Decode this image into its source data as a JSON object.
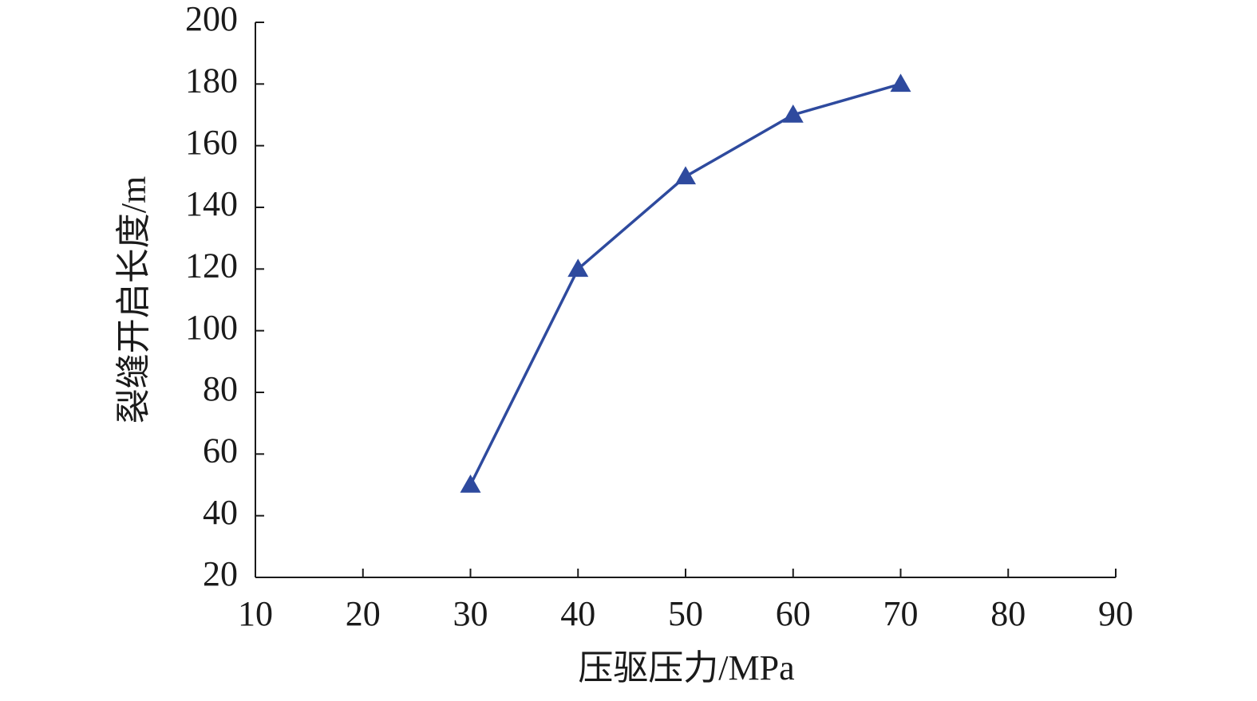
{
  "chart_data": {
    "type": "line",
    "x_label": "压驱压力/MPa",
    "y_label": "裂缝开启长度/m",
    "x": [
      30,
      40,
      50,
      60,
      70
    ],
    "series": [
      {
        "color": "#2e4a9e",
        "marker": "triangle",
        "values": [
          50,
          120,
          150,
          170,
          180
        ]
      }
    ],
    "xlim": [
      10,
      90
    ],
    "xticks": [
      10,
      20,
      30,
      40,
      50,
      60,
      70,
      80,
      90
    ],
    "ylim": [
      20,
      200
    ],
    "yticks": [
      20,
      40,
      60,
      80,
      100,
      120,
      140,
      160,
      180,
      200
    ],
    "grid": false
  }
}
